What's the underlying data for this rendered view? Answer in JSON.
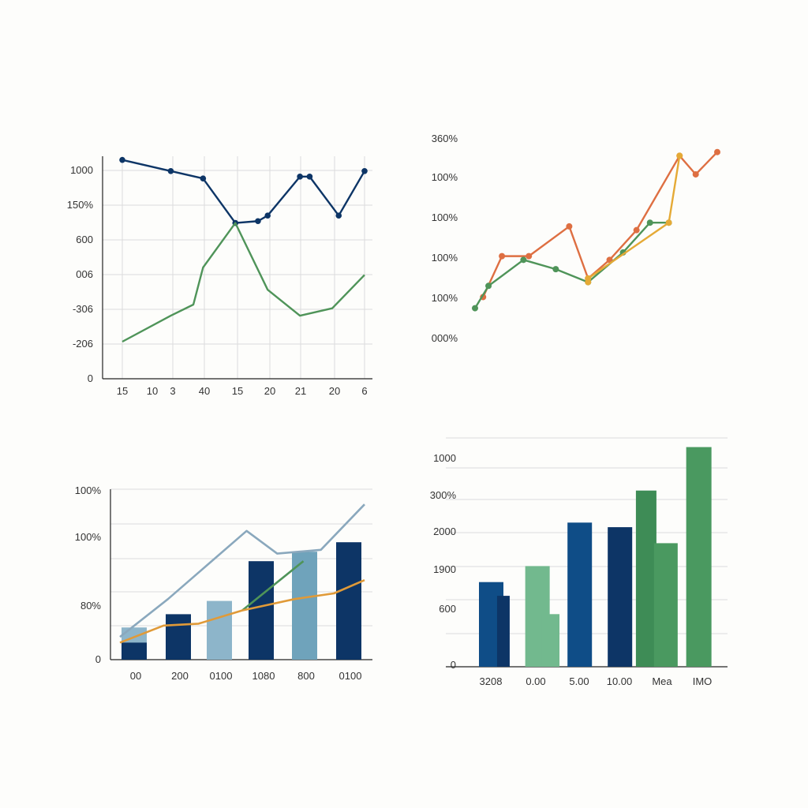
{
  "colors": {
    "navy": "#0d3566",
    "blue": "#0f4d87",
    "green": "#4f9459",
    "orange": "#de6f42",
    "yellow": "#e5aa36",
    "gold": "#e09a38",
    "light_blue": "#8db5ca",
    "teal_blue": "#6fa3bb",
    "mint": "#72b98e",
    "dark_green": "#3e8c56",
    "mid_green": "#4a9960",
    "steel": "#8aa8bd",
    "grid": "#dcdcdc",
    "axis": "#222222"
  },
  "chart_data": [
    {
      "id": "chart1",
      "type": "line",
      "grid": true,
      "y_tick_labels": [
        "1000",
        "150%",
        "600",
        "006",
        "-306",
        "-206",
        "0"
      ],
      "x_tick_labels": [
        "15",
        "10",
        "3",
        "40",
        "15",
        "20",
        "21",
        "20",
        "6"
      ],
      "ylim": [
        0,
        6
      ],
      "series": [
        {
          "color": "navy",
          "markers": true,
          "x": [
            0,
            1.5,
            2.5,
            3.5,
            4.2,
            4.5,
            5.5,
            5.8,
            6.7,
            7.5
          ],
          "y": [
            5.9,
            5.6,
            5.4,
            4.2,
            4.25,
            4.4,
            5.45,
            5.45,
            4.4,
            5.6
          ]
        },
        {
          "color": "green",
          "markers": false,
          "x": [
            0,
            1.5,
            2.2,
            2.5,
            3.5,
            4.5,
            5.5,
            6.5,
            7.5
          ],
          "y": [
            1.0,
            1.7,
            2.0,
            3.0,
            4.2,
            2.4,
            1.7,
            1.9,
            2.8
          ]
        }
      ]
    },
    {
      "id": "chart2",
      "type": "line",
      "grid": false,
      "y_tick_labels": [
        "360%",
        "100%",
        "100%",
        "100%",
        "100%",
        "000%"
      ],
      "x_tick_labels": [],
      "series": [
        {
          "color": "orange",
          "x": [
            0.3,
            1,
            2,
            3.5,
            4.2,
            5,
            6,
            7.6,
            8.2,
            9
          ],
          "y": [
            1.0,
            2.1,
            2.1,
            2.9,
            1.5,
            2.0,
            2.8,
            4.8,
            4.3,
            4.9
          ]
        },
        {
          "color": "green",
          "x": [
            0,
            0.5,
            1.8,
            3,
            4.2,
            5.5,
            6.5,
            7.2
          ],
          "y": [
            0.7,
            1.3,
            2.0,
            1.75,
            1.4,
            2.2,
            3.0,
            3.0
          ]
        },
        {
          "color": "yellow",
          "x": [
            4.2,
            4.2,
            7.2,
            7.6
          ],
          "y": [
            1.4,
            1.5,
            3.0,
            4.8
          ]
        }
      ]
    },
    {
      "id": "chart3",
      "type": "bar",
      "grid": true,
      "y_tick_labels": [
        "100%",
        "100%",
        "80%",
        "0"
      ],
      "categories": [
        "00",
        "200",
        "0100",
        "1080",
        "800",
        "0100"
      ],
      "bars": [
        {
          "x": 0,
          "value": 0.85,
          "color": "light_blue"
        },
        {
          "x": 0,
          "value": 0.45,
          "color": "navy"
        },
        {
          "x": 1,
          "value": 1.2,
          "color": "navy"
        },
        {
          "x": 2,
          "value": 1.55,
          "color": "light_blue"
        },
        {
          "x": 3,
          "value": 2.6,
          "color": "navy"
        },
        {
          "x": 4,
          "value": 2.85,
          "color": "teal_blue"
        },
        {
          "x": 5,
          "value": 3.1,
          "color": "navy"
        }
      ],
      "lines": [
        {
          "color": "steel",
          "x": [
            0,
            1.1,
            2,
            2.9,
            3.6,
            4.6,
            5.6
          ],
          "y": [
            0.6,
            1.6,
            2.5,
            3.4,
            2.8,
            2.9,
            4.1
          ]
        },
        {
          "color": "green",
          "x": [
            2.8,
            4.2
          ],
          "y": [
            1.3,
            2.6
          ]
        },
        {
          "color": "gold",
          "x": [
            0,
            1,
            1.8,
            2.8,
            4,
            4.9,
            5.6
          ],
          "y": [
            0.45,
            0.9,
            0.95,
            1.3,
            1.6,
            1.75,
            2.1
          ]
        }
      ]
    },
    {
      "id": "chart4",
      "type": "bar",
      "grid": true,
      "y_tick_labels": [
        "1000",
        "300%",
        "2000",
        "1900",
        "600",
        "0"
      ],
      "categories": [
        "3208",
        "0.00",
        "5.00",
        "10.00",
        "Mea",
        "IMO"
      ],
      "bars": [
        {
          "x": 0,
          "value": 1.85,
          "color": "blue"
        },
        {
          "x": 0.45,
          "value": 1.55,
          "color": "navy"
        },
        {
          "x": 1.15,
          "value": 2.2,
          "color": "mint"
        },
        {
          "x": 1.55,
          "value": 1.15,
          "color": "mint"
        },
        {
          "x": 2.2,
          "value": 3.15,
          "color": "blue"
        },
        {
          "x": 3.2,
          "value": 3.05,
          "color": "navy"
        },
        {
          "x": 3.9,
          "value": 3.85,
          "color": "dark_green"
        },
        {
          "x": 4.35,
          "value": 2.7,
          "color": "mid_green"
        },
        {
          "x": 5.15,
          "value": 4.8,
          "color": "mid_green"
        }
      ]
    }
  ]
}
